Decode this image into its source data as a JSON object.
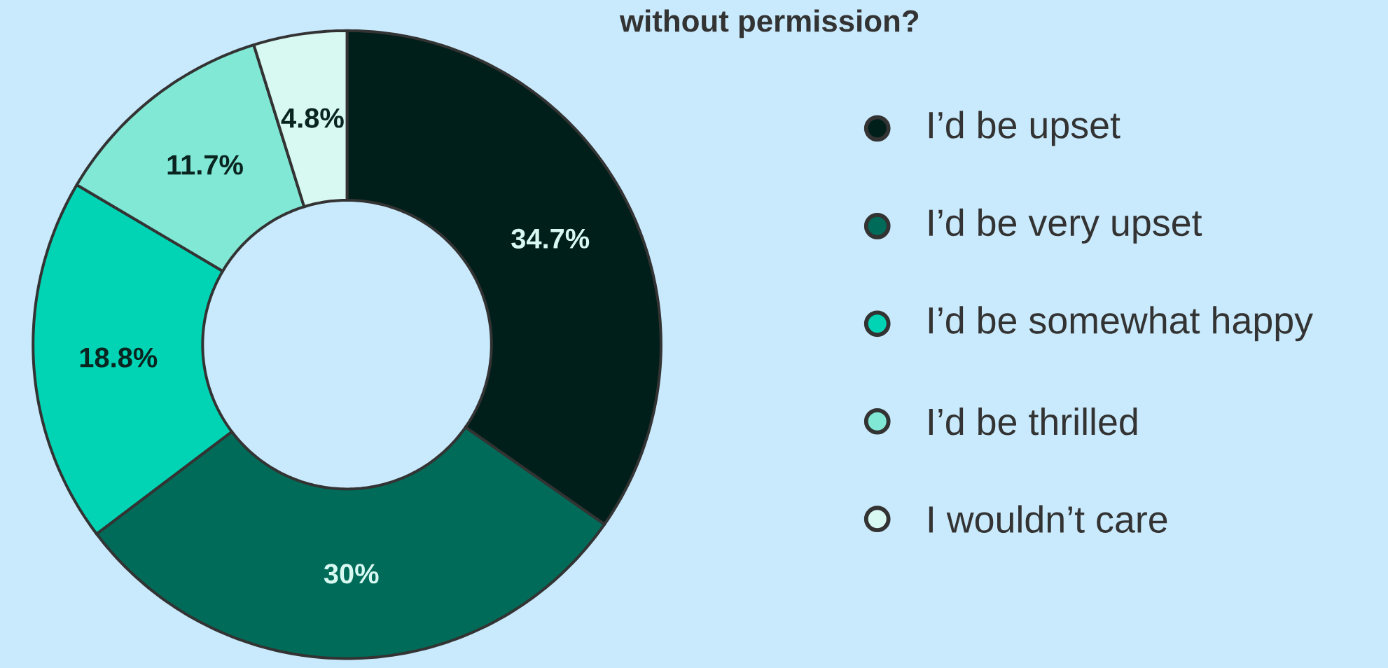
{
  "chart_data": {
    "type": "donut",
    "title": "without permission?",
    "categories": [
      "I’d be upset",
      "I’d be very upset",
      "I’d be somewhat happy",
      "I’d be thrilled",
      "I wouldn’t care"
    ],
    "values": [
      34.7,
      30,
      18.8,
      11.7,
      4.8
    ],
    "value_labels": [
      "34.7%",
      "30%",
      "18.8%",
      "11.7%",
      "4.8%"
    ],
    "colors": [
      "#001f1a",
      "#006b58",
      "#00d4b4",
      "#80e8d5",
      "#d8f8f2"
    ],
    "legend": "right"
  }
}
